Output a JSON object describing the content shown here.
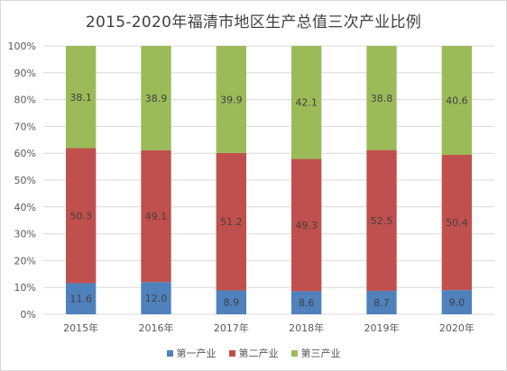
{
  "chart_data": {
    "type": "bar",
    "stacked": true,
    "percent_stacked": true,
    "title": "2015-2020年福清市地区生产总值三次产业比例",
    "categories": [
      "2015年",
      "2016年",
      "2017年",
      "2018年",
      "2019年",
      "2020年"
    ],
    "series": [
      {
        "name": "第一产业",
        "color": "#4f81bd",
        "values": [
          11.6,
          12.0,
          8.9,
          8.6,
          8.7,
          9.0
        ]
      },
      {
        "name": "第二产业",
        "color": "#c0504d",
        "values": [
          50.3,
          49.1,
          51.2,
          49.3,
          52.5,
          50.4
        ]
      },
      {
        "name": "第三产业",
        "color": "#9bbb59",
        "values": [
          38.1,
          38.9,
          39.9,
          42.1,
          38.8,
          40.6
        ]
      }
    ],
    "yticks": [
      "0%",
      "10%",
      "20%",
      "30%",
      "40%",
      "50%",
      "60%",
      "70%",
      "80%",
      "90%",
      "100%"
    ],
    "ylim": [
      0,
      100
    ],
    "grid": true,
    "legend_position": "bottom"
  }
}
